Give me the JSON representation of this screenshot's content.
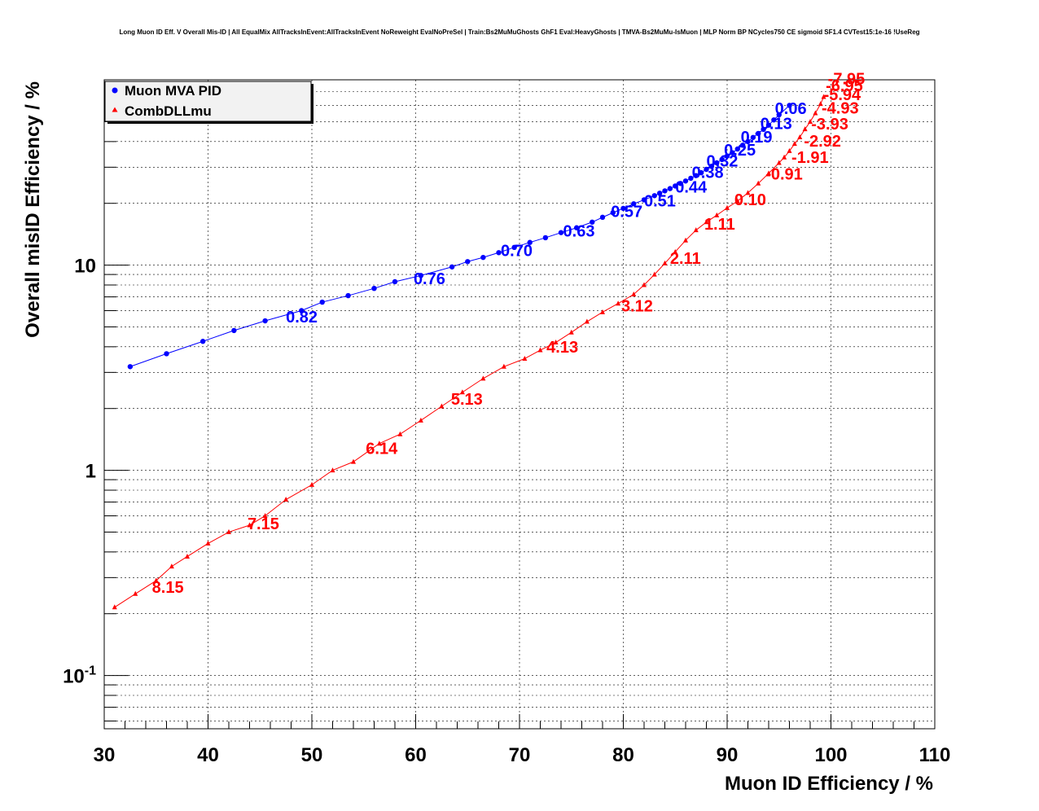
{
  "chart_data": {
    "type": "scatter",
    "title": "Long Muon ID Eff. V Overall Mis-ID | All EqualMix AllTracksInEvent:AllTracksInEvent NoReweight EvalNoPreSel | Train:Bs2MuMuGhosts GhF1 Eval:HeavyGhosts | TMVA-Bs2MuMu-IsMuon | MLP Norm BP NCycles750 CE sigmoid SF1.4 CVTest15:1e-16 !UseReg",
    "xlabel": "Muon ID Efficiency / %",
    "ylabel": "Overall misID Efficiency / %",
    "xlim": [
      30,
      110
    ],
    "ylim": [
      0.055,
      80
    ],
    "yscale": "log",
    "grid": true,
    "legend_position": "top-left",
    "x_ticks": [
      "30",
      "40",
      "50",
      "60",
      "70",
      "80",
      "90",
      "100",
      "110"
    ],
    "y_ticks": [
      {
        "value": 0.1,
        "mantissa": "10",
        "exponent": "-1"
      },
      {
        "value": 1,
        "mantissa": "1",
        "exponent": ""
      },
      {
        "value": 10,
        "mantissa": "10",
        "exponent": ""
      }
    ],
    "series": [
      {
        "name": "Muon MVA PID",
        "color": "#0000ff",
        "marker": "circle",
        "x": [
          32.5,
          36,
          39.5,
          42.5,
          45.5,
          49,
          51,
          53.5,
          56,
          58,
          60.5,
          63.5,
          65,
          66.5,
          68,
          69.5,
          71,
          72.5,
          74,
          75.5,
          77,
          78,
          79,
          80,
          81,
          82,
          83,
          83.5,
          84,
          84.5,
          85,
          85.5,
          86,
          86.5,
          87,
          87.5,
          88,
          88.5,
          89,
          89.5,
          90,
          90.5,
          91,
          91.5,
          92,
          92.5,
          93,
          93.5,
          94,
          94.5,
          95,
          96
        ],
        "y": [
          3.2,
          3.7,
          4.25,
          4.8,
          5.35,
          6.0,
          6.6,
          7.1,
          7.7,
          8.3,
          8.9,
          9.8,
          10.4,
          10.9,
          11.5,
          12.2,
          12.9,
          13.6,
          14.4,
          15.2,
          16.2,
          17.1,
          18.0,
          18.9,
          19.9,
          20.8,
          21.8,
          22.4,
          23.0,
          23.6,
          24.3,
          25.0,
          25.7,
          26.5,
          27.3,
          28.2,
          29.3,
          30.3,
          31.5,
          32.7,
          34.0,
          35.3,
          36.8,
          38.4,
          40.0,
          41.9,
          43.8,
          45.9,
          48.1,
          51.0,
          54.0,
          60.0
        ]
      },
      {
        "name": "CombDLLmu",
        "color": "#ff0000",
        "marker": "triangle",
        "x": [
          31,
          33,
          35,
          36.5,
          38,
          40,
          42,
          44,
          45.5,
          47.5,
          50,
          52,
          54,
          56.5,
          58.5,
          60.5,
          62.5,
          64.5,
          66.5,
          68.5,
          70.5,
          72,
          73.5,
          75,
          76.5,
          78,
          79.5,
          81,
          82,
          83,
          84,
          85,
          86,
          87,
          88,
          89,
          90,
          91,
          92,
          93,
          94,
          95,
          95.5,
          96,
          96.5,
          97,
          97.5,
          98,
          98.5,
          99,
          99.3
        ],
        "y": [
          0.215,
          0.25,
          0.29,
          0.34,
          0.38,
          0.44,
          0.5,
          0.54,
          0.6,
          0.72,
          0.85,
          1.0,
          1.1,
          1.35,
          1.5,
          1.75,
          2.05,
          2.4,
          2.8,
          3.2,
          3.5,
          3.85,
          4.2,
          4.7,
          5.3,
          5.9,
          6.5,
          7.2,
          8.0,
          9.0,
          10.2,
          11.6,
          13.2,
          14.8,
          16.2,
          17.5,
          19.0,
          20.5,
          22.5,
          25.0,
          28.0,
          31.5,
          33.5,
          36.0,
          39.0,
          42.0,
          46.0,
          50.0,
          55.0,
          61.0,
          66.0
        ]
      }
    ],
    "annotations": [
      {
        "series": "Muon MVA PID",
        "text": "0.82",
        "x": 47.5,
        "y": 5.6
      },
      {
        "series": "Muon MVA PID",
        "text": "0.76",
        "x": 59.8,
        "y": 8.6
      },
      {
        "series": "Muon MVA PID",
        "text": "0.70",
        "x": 68.2,
        "y": 11.8
      },
      {
        "series": "Muon MVA PID",
        "text": "0.63",
        "x": 74.2,
        "y": 14.7
      },
      {
        "series": "Muon MVA PID",
        "text": "0.57",
        "x": 78.8,
        "y": 18.3
      },
      {
        "series": "Muon MVA PID",
        "text": "0.51",
        "x": 82.0,
        "y": 20.6
      },
      {
        "series": "Muon MVA PID",
        "text": "0.44",
        "x": 85.0,
        "y": 24.1
      },
      {
        "series": "Muon MVA PID",
        "text": "0.38",
        "x": 86.6,
        "y": 28.3
      },
      {
        "series": "Muon MVA PID",
        "text": "0.32",
        "x": 88.0,
        "y": 32.3
      },
      {
        "series": "Muon MVA PID",
        "text": "0.25",
        "x": 89.7,
        "y": 36.4
      },
      {
        "series": "Muon MVA PID",
        "text": "0.19",
        "x": 91.3,
        "y": 42.2
      },
      {
        "series": "Muon MVA PID",
        "text": "0.13",
        "x": 93.2,
        "y": 49.0
      },
      {
        "series": "Muon MVA PID",
        "text": "0.06",
        "x": 94.6,
        "y": 58.0
      },
      {
        "series": "CombDLLmu",
        "text": "8.15",
        "x": 34.6,
        "y": 0.27
      },
      {
        "series": "CombDLLmu",
        "text": "7.15",
        "x": 43.8,
        "y": 0.55
      },
      {
        "series": "CombDLLmu",
        "text": "6.14",
        "x": 55.2,
        "y": 1.28
      },
      {
        "series": "CombDLLmu",
        "text": "5.13",
        "x": 63.4,
        "y": 2.23
      },
      {
        "series": "CombDLLmu",
        "text": "4.13",
        "x": 72.6,
        "y": 4.0
      },
      {
        "series": "CombDLLmu",
        "text": "3.12",
        "x": 79.8,
        "y": 6.35
      },
      {
        "series": "CombDLLmu",
        "text": "2.11",
        "x": 84.5,
        "y": 10.8
      },
      {
        "series": "CombDLLmu",
        "text": "1.11",
        "x": 87.8,
        "y": 15.9
      },
      {
        "series": "CombDLLmu",
        "text": "0.10",
        "x": 90.7,
        "y": 20.9
      },
      {
        "series": "CombDLLmu",
        "text": "-0.91",
        "x": 93.7,
        "y": 27.8
      },
      {
        "series": "CombDLLmu",
        "text": "-1.91",
        "x": 96.2,
        "y": 33.6
      },
      {
        "series": "CombDLLmu",
        "text": "-2.92",
        "x": 97.4,
        "y": 40.4
      },
      {
        "series": "CombDLLmu",
        "text": "-3.93",
        "x": 98.1,
        "y": 48.8
      },
      {
        "series": "CombDLLmu",
        "text": "-4.93",
        "x": 99.1,
        "y": 58.5
      },
      {
        "series": "CombDLLmu",
        "text": "-5.94",
        "x": 99.3,
        "y": 68.0
      },
      {
        "series": "CombDLLmu",
        "text": "-6.95",
        "x": 99.5,
        "y": 75.0
      },
      {
        "series": "CombDLLmu",
        "text": "-7.95",
        "x": 99.7,
        "y": 81.0
      }
    ]
  }
}
